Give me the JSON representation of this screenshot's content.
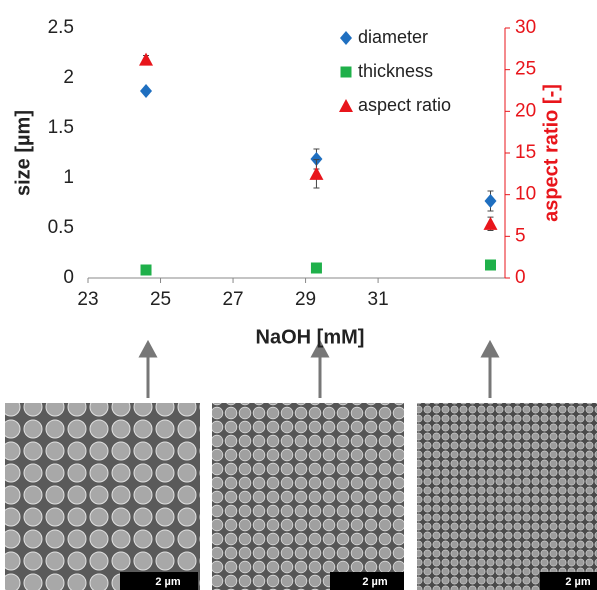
{
  "chart_data": {
    "type": "scatter",
    "x_label": "NaOH [mM]",
    "y_label": "size [µm]",
    "y2_label": "aspect ratio [-]",
    "x": [
      24.6,
      29.3,
      34.1
    ],
    "xlim": [
      23,
      34.5
    ],
    "xticks": [
      23,
      25,
      27,
      29,
      31
    ],
    "ylim": [
      0,
      2.5
    ],
    "yticks": [
      0,
      0.5,
      1,
      1.5,
      2,
      2.5
    ],
    "y2lim": [
      0,
      30
    ],
    "y2ticks": [
      0,
      5,
      10,
      15,
      20,
      25,
      30
    ],
    "legend": "top-right",
    "series": [
      {
        "name": "diameter",
        "color": "#1f6fc0",
        "marker": "diamond",
        "values": [
          1.87,
          1.19,
          0.77
        ],
        "errors": [
          0.02,
          0.1,
          0.1
        ]
      },
      {
        "name": "thickness",
        "color": "#1fb04a",
        "marker": "square",
        "values": [
          0.08,
          0.1,
          0.13
        ]
      },
      {
        "name": "aspect ratio",
        "color": "#e8151b",
        "marker": "triangle",
        "axis": "y2",
        "values": [
          26.2,
          12.5,
          6.5
        ],
        "errors": [
          0.5,
          1.7,
          0.8
        ]
      }
    ]
  },
  "micrographs": [
    {
      "scale_bar": "2 µm"
    },
    {
      "scale_bar": "2 µm"
    },
    {
      "scale_bar": "2 µm"
    }
  ]
}
